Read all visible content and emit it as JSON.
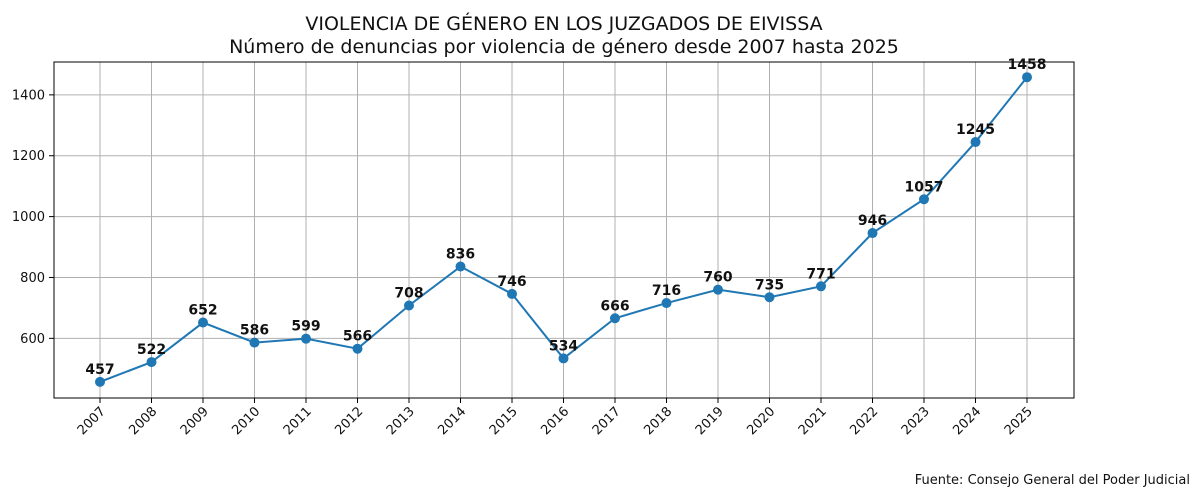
{
  "chart_data": {
    "type": "line",
    "title": "VIOLENCIA DE GÉNERO EN LOS JUZGADOS DE EIVISSA",
    "subtitle": "Número de denuncias por violencia de género desde 2007 hasta 2025",
    "xlabel": "",
    "ylabel": "",
    "x": [
      "2007",
      "2008",
      "2009",
      "2010",
      "2011",
      "2012",
      "2013",
      "2014",
      "2015",
      "2016",
      "2017",
      "2018",
      "2019",
      "2020",
      "2021",
      "2022",
      "2023",
      "2024",
      "2025"
    ],
    "values": [
      457,
      522,
      652,
      586,
      599,
      566,
      708,
      836,
      746,
      534,
      666,
      716,
      760,
      735,
      771,
      946,
      1057,
      1245,
      1458
    ],
    "ylim": [
      404,
      1508
    ],
    "yticks": [
      600,
      800,
      1000,
      1200,
      1400
    ],
    "grid": true,
    "color": "#1f77b4",
    "source": "Fuente: Consejo General del Poder Judicial"
  }
}
